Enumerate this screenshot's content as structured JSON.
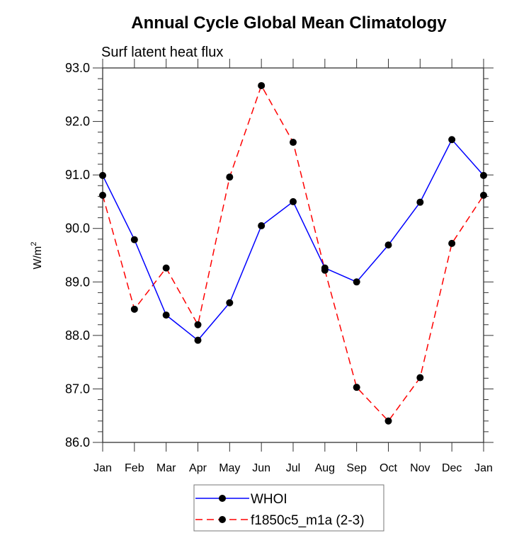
{
  "chart_data": {
    "type": "line",
    "title": "Annual Cycle Global Mean Climatology",
    "subtitle": "Surf latent heat flux",
    "xlabel": "",
    "ylabel": "W/m",
    "ylabel_superscript": "2",
    "ylim": [
      86.0,
      93.0
    ],
    "yticks": [
      "86.0",
      "87.0",
      "88.0",
      "89.0",
      "90.0",
      "91.0",
      "92.0",
      "93.0"
    ],
    "ytick_values": [
      86,
      87,
      88,
      89,
      90,
      91,
      92,
      93
    ],
    "yminor_step": 0.2,
    "categories": [
      "Jan",
      "Feb",
      "Mar",
      "Apr",
      "May",
      "Jun",
      "Jul",
      "Aug",
      "Sep",
      "Oct",
      "Nov",
      "Dec",
      "Jan"
    ],
    "grid": false,
    "legend_position": "bottom-center",
    "series": [
      {
        "name": "WHOI",
        "color": "#0000ff",
        "style": "solid",
        "marker": "filled-circle",
        "values": [
          90.99,
          89.79,
          88.38,
          87.91,
          88.61,
          90.05,
          90.5,
          89.26,
          89.0,
          89.69,
          90.49,
          91.66,
          90.99
        ]
      },
      {
        "name": "f1850c5_m1a (2-3)",
        "color": "#ff0000",
        "style": "dashed",
        "marker": "filled-circle",
        "values": [
          90.62,
          88.49,
          89.26,
          88.2,
          90.96,
          92.67,
          91.61,
          89.22,
          87.03,
          86.4,
          87.21,
          89.72,
          90.62
        ]
      }
    ]
  }
}
